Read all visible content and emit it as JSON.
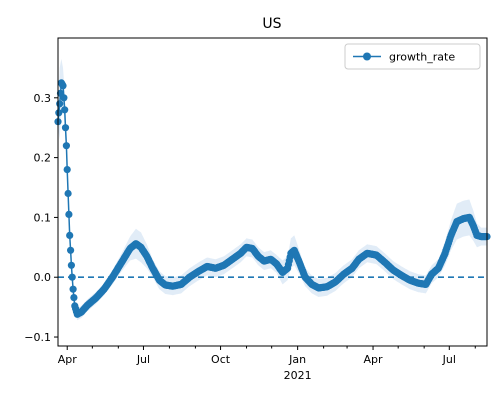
{
  "chart_data": {
    "type": "line",
    "title": "US",
    "xlabel": "",
    "ylabel": "",
    "x_start": "2020-03-21",
    "x_end": "2021-08-15",
    "xlim": [
      "2020-03-21",
      "2021-08-15"
    ],
    "ylim": [
      -0.115,
      0.4
    ],
    "x_ticks": [
      {
        "date": "2020-04-01",
        "label": "Apr",
        "sub": ""
      },
      {
        "date": "2020-07-01",
        "label": "Jul",
        "sub": ""
      },
      {
        "date": "2020-10-01",
        "label": "Oct",
        "sub": ""
      },
      {
        "date": "2021-01-01",
        "label": "Jan",
        "sub": "2021"
      },
      {
        "date": "2021-04-01",
        "label": "Apr",
        "sub": ""
      },
      {
        "date": "2021-07-01",
        "label": "Jul",
        "sub": ""
      }
    ],
    "minor_x_ticks": [
      "2020-05-01",
      "2020-06-01",
      "2020-08-01",
      "2020-09-01",
      "2020-11-01",
      "2020-12-01",
      "2021-02-01",
      "2021-03-01",
      "2021-05-01",
      "2021-06-01",
      "2021-08-01"
    ],
    "y_ticks": [
      {
        "value": -0.1,
        "label": "−0.1"
      },
      {
        "value": 0.0,
        "label": "0.0"
      },
      {
        "value": 0.1,
        "label": "0.1"
      },
      {
        "value": 0.2,
        "label": "0.2"
      },
      {
        "value": 0.3,
        "label": "0.3"
      }
    ],
    "reference_line": {
      "y": 0.0,
      "style": "dashed"
    },
    "legend": {
      "position": "top-right",
      "entries": [
        "growth_rate"
      ]
    },
    "series": [
      {
        "name": "growth_rate",
        "color": "#1f77b4",
        "band_color": "#c8dcf0",
        "points": [
          {
            "x": "2020-03-21",
            "y": 0.26,
            "band": 0.01
          },
          {
            "x": "2020-03-23",
            "y": 0.29,
            "band": 0.06
          },
          {
            "x": "2020-03-25",
            "y": 0.325,
            "band": 0.04
          },
          {
            "x": "2020-03-27",
            "y": 0.32,
            "band": 0.03
          },
          {
            "x": "2020-03-29",
            "y": 0.28,
            "band": 0.03
          },
          {
            "x": "2020-03-31",
            "y": 0.22,
            "band": 0.02
          },
          {
            "x": "2020-04-02",
            "y": 0.14,
            "band": 0.02
          },
          {
            "x": "2020-04-04",
            "y": 0.07,
            "band": 0.015
          },
          {
            "x": "2020-04-06",
            "y": 0.02,
            "band": 0.01
          },
          {
            "x": "2020-04-08",
            "y": -0.02,
            "band": 0.01
          },
          {
            "x": "2020-04-10",
            "y": -0.048,
            "band": 0.01
          },
          {
            "x": "2020-04-13",
            "y": -0.062,
            "band": 0.01
          },
          {
            "x": "2020-04-18",
            "y": -0.058,
            "band": 0.01
          },
          {
            "x": "2020-04-25",
            "y": -0.047,
            "band": 0.01
          },
          {
            "x": "2020-05-05",
            "y": -0.035,
            "band": 0.01
          },
          {
            "x": "2020-05-15",
            "y": -0.02,
            "band": 0.01
          },
          {
            "x": "2020-05-25",
            "y": 0.0,
            "band": 0.012
          },
          {
            "x": "2020-06-05",
            "y": 0.025,
            "band": 0.015
          },
          {
            "x": "2020-06-15",
            "y": 0.048,
            "band": 0.02
          },
          {
            "x": "2020-06-22",
            "y": 0.056,
            "band": 0.025
          },
          {
            "x": "2020-06-28",
            "y": 0.05,
            "band": 0.025
          },
          {
            "x": "2020-07-05",
            "y": 0.035,
            "band": 0.02
          },
          {
            "x": "2020-07-12",
            "y": 0.015,
            "band": 0.015
          },
          {
            "x": "2020-07-20",
            "y": -0.005,
            "band": 0.015
          },
          {
            "x": "2020-07-27",
            "y": -0.013,
            "band": 0.015
          },
          {
            "x": "2020-08-05",
            "y": -0.015,
            "band": 0.015
          },
          {
            "x": "2020-08-15",
            "y": -0.012,
            "band": 0.015
          },
          {
            "x": "2020-08-25",
            "y": 0.0,
            "band": 0.015
          },
          {
            "x": "2020-09-05",
            "y": 0.01,
            "band": 0.015
          },
          {
            "x": "2020-09-15",
            "y": 0.018,
            "band": 0.015
          },
          {
            "x": "2020-09-25",
            "y": 0.015,
            "band": 0.015
          },
          {
            "x": "2020-10-05",
            "y": 0.02,
            "band": 0.015
          },
          {
            "x": "2020-10-15",
            "y": 0.03,
            "band": 0.015
          },
          {
            "x": "2020-10-25",
            "y": 0.04,
            "band": 0.015
          },
          {
            "x": "2020-11-01",
            "y": 0.05,
            "band": 0.015
          },
          {
            "x": "2020-11-08",
            "y": 0.048,
            "band": 0.015
          },
          {
            "x": "2020-11-15",
            "y": 0.035,
            "band": 0.015
          },
          {
            "x": "2020-11-22",
            "y": 0.027,
            "band": 0.015
          },
          {
            "x": "2020-11-30",
            "y": 0.03,
            "band": 0.015
          },
          {
            "x": "2020-12-07",
            "y": 0.022,
            "band": 0.015
          },
          {
            "x": "2020-12-14",
            "y": 0.008,
            "band": 0.02
          },
          {
            "x": "2020-12-20",
            "y": 0.015,
            "band": 0.02
          },
          {
            "x": "2020-12-24",
            "y": 0.04,
            "band": 0.025
          },
          {
            "x": "2020-12-28",
            "y": 0.045,
            "band": 0.025
          },
          {
            "x": "2021-01-03",
            "y": 0.025,
            "band": 0.02
          },
          {
            "x": "2021-01-10",
            "y": 0.0,
            "band": 0.015
          },
          {
            "x": "2021-01-18",
            "y": -0.012,
            "band": 0.015
          },
          {
            "x": "2021-01-26",
            "y": -0.018,
            "band": 0.015
          },
          {
            "x": "2021-02-05",
            "y": -0.016,
            "band": 0.015
          },
          {
            "x": "2021-02-15",
            "y": -0.008,
            "band": 0.015
          },
          {
            "x": "2021-02-25",
            "y": 0.005,
            "band": 0.015
          },
          {
            "x": "2021-03-07",
            "y": 0.015,
            "band": 0.015
          },
          {
            "x": "2021-03-15",
            "y": 0.03,
            "band": 0.015
          },
          {
            "x": "2021-03-25",
            "y": 0.04,
            "band": 0.015
          },
          {
            "x": "2021-04-05",
            "y": 0.037,
            "band": 0.015
          },
          {
            "x": "2021-04-15",
            "y": 0.025,
            "band": 0.015
          },
          {
            "x": "2021-04-25",
            "y": 0.012,
            "band": 0.015
          },
          {
            "x": "2021-05-05",
            "y": 0.003,
            "band": 0.015
          },
          {
            "x": "2021-05-15",
            "y": -0.005,
            "band": 0.015
          },
          {
            "x": "2021-05-25",
            "y": -0.01,
            "band": 0.015
          },
          {
            "x": "2021-06-03",
            "y": -0.012,
            "band": 0.015
          },
          {
            "x": "2021-06-10",
            "y": 0.005,
            "band": 0.015
          },
          {
            "x": "2021-06-18",
            "y": 0.015,
            "band": 0.015
          },
          {
            "x": "2021-06-26",
            "y": 0.04,
            "band": 0.02
          },
          {
            "x": "2021-07-03",
            "y": 0.07,
            "band": 0.025
          },
          {
            "x": "2021-07-10",
            "y": 0.093,
            "band": 0.03
          },
          {
            "x": "2021-07-18",
            "y": 0.098,
            "band": 0.03
          },
          {
            "x": "2021-07-25",
            "y": 0.1,
            "band": 0.03
          },
          {
            "x": "2021-07-30",
            "y": 0.085,
            "band": 0.025
          },
          {
            "x": "2021-08-03",
            "y": 0.07,
            "band": 0.02
          },
          {
            "x": "2021-08-08",
            "y": 0.068,
            "band": 0.015
          },
          {
            "x": "2021-08-15",
            "y": 0.068,
            "band": 0.015
          }
        ]
      }
    ]
  }
}
